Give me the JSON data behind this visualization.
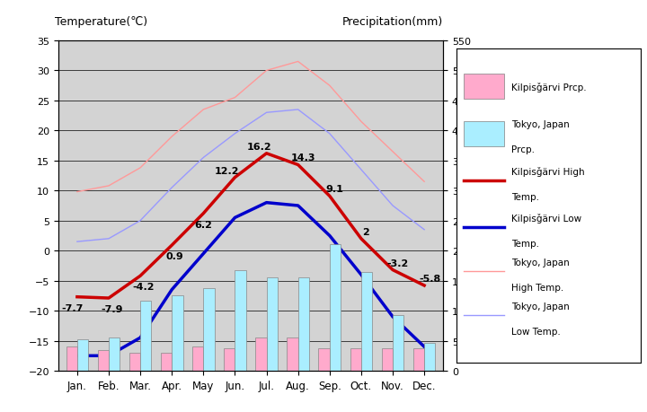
{
  "months": [
    "Jan.",
    "Feb.",
    "Mar.",
    "Apr.",
    "May",
    "Jun.",
    "Jul.",
    "Aug.",
    "Sep.",
    "Oct.",
    "Nov.",
    "Dec."
  ],
  "kilpisjarvi_high": [
    -7.7,
    -7.9,
    -4.2,
    0.9,
    6.2,
    12.2,
    16.2,
    14.3,
    9.1,
    2.0,
    -3.2,
    -5.8
  ],
  "kilpisjarvi_low": [
    -17.5,
    -17.5,
    -14.5,
    -6.5,
    -0.5,
    5.5,
    8.0,
    7.5,
    2.5,
    -4.0,
    -11.0,
    -16.0
  ],
  "tokyo_high": [
    9.8,
    10.8,
    13.8,
    19.0,
    23.5,
    25.5,
    30.0,
    31.5,
    27.5,
    21.5,
    16.5,
    11.5
  ],
  "tokyo_low": [
    1.5,
    2.0,
    5.0,
    10.5,
    15.5,
    19.5,
    23.0,
    23.5,
    19.5,
    13.5,
    7.5,
    3.5
  ],
  "kilpisjarvi_precip_mm": [
    40,
    35,
    30,
    30,
    40,
    38,
    55,
    55,
    38,
    38,
    38,
    38
  ],
  "tokyo_precip_mm": [
    52,
    56,
    117,
    125,
    138,
    168,
    156,
    155,
    210,
    165,
    93,
    47
  ],
  "temp_ylim": [
    -20,
    35
  ],
  "precip_ylim": [
    0,
    550
  ],
  "background_color": "#d3d3d3",
  "plot_bg_color": "#d3d3d3",
  "outer_bg_color": "#ffffff",
  "kilpisjarvi_high_color": "#cc0000",
  "kilpisjarvi_low_color": "#0000cc",
  "tokyo_high_color": "#ff9999",
  "tokyo_low_color": "#9999ff",
  "kilpisjarvi_precip_color": "#ffaacc",
  "tokyo_precip_color": "#aaeeff",
  "grid_color": "#000000",
  "title_left": "Temperature(℃)",
  "title_right": "Precipitation(mm)",
  "high_labels": {
    "0": "-7.7",
    "1": "-7.9",
    "2": "-4.2",
    "3": "0.9",
    "4": "6.2",
    "5": "12.2",
    "6": "16.2",
    "7": "14.3",
    "8": "9.1",
    "9": "2",
    "10": "-3.2",
    "11": "-5.8"
  },
  "legend_labels": [
    "Kilpisǧärvi Prcp.",
    "Tokyo, Japan\nPrcp.",
    "Kilpisǧärvi High\nTemp.",
    "Kilpisǧärvi Low\nTemp.",
    "Tokyo, Japan\nHigh Temp.",
    "Tokyo, Japan\nLow Temp."
  ]
}
